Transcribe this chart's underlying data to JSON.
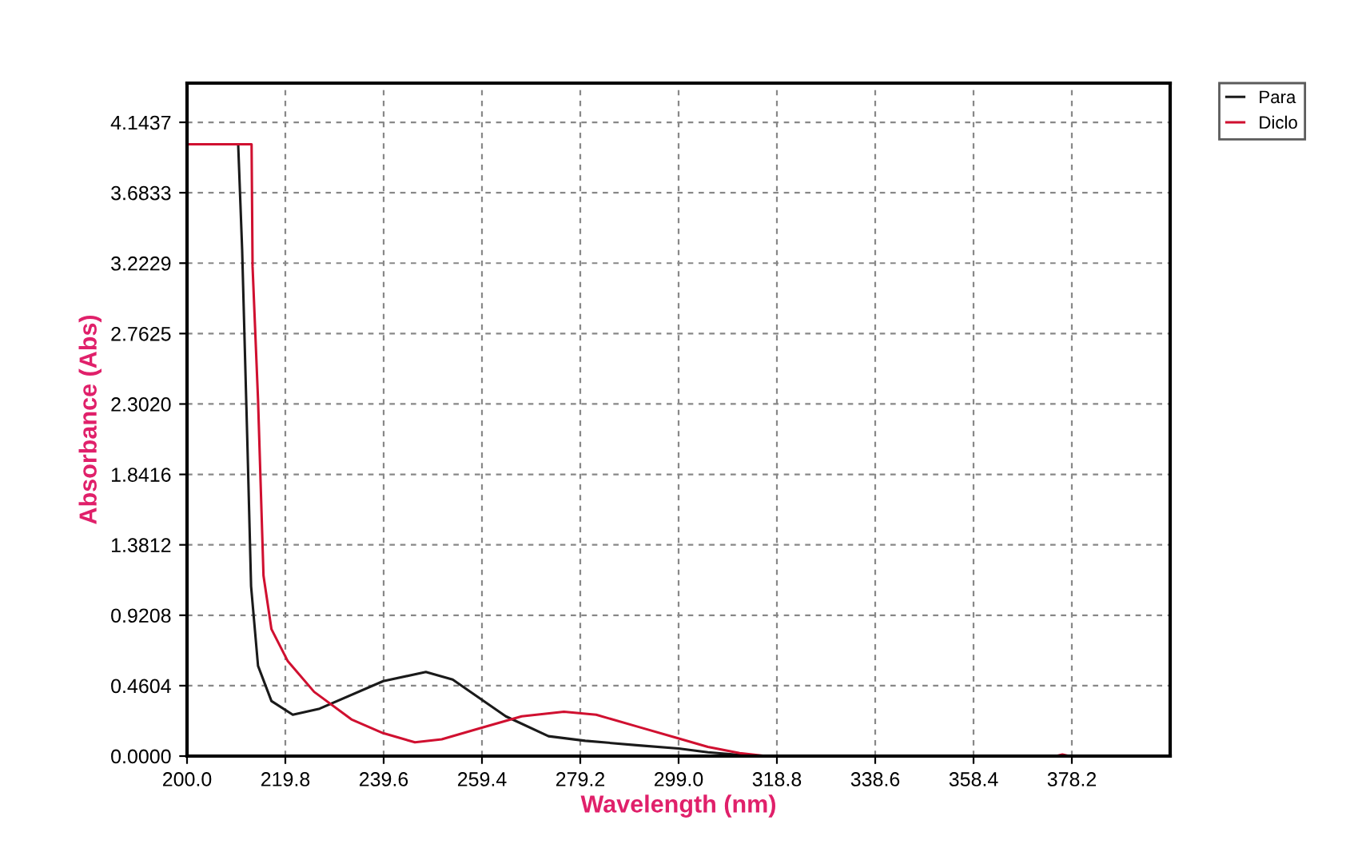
{
  "chart_data": {
    "type": "line",
    "xlabel": "Wavelength (nm)",
    "ylabel": "Absorbance (Abs)",
    "series": [
      {
        "name": "Para",
        "color": "#1a1a1a",
        "x": [
          200,
          210.3,
          211.1,
          212.2,
          212.9,
          214.3,
          217.0,
          221.3,
          226.7,
          239.5,
          248.1,
          253.5,
          264.2,
          272.8,
          280.2,
          291,
          299,
          304.9,
          310.3,
          315,
          398
        ],
        "values": [
          4.0,
          4.0,
          3.31,
          1.99,
          1.11,
          0.59,
          0.36,
          0.27,
          0.31,
          0.49,
          0.55,
          0.5,
          0.26,
          0.13,
          0.1,
          0.07,
          0.05,
          0.025,
          0.01,
          0,
          0
        ]
      },
      {
        "name": "Diclo",
        "color": "#d01030",
        "x": [
          200,
          213.0,
          213.2,
          214.3,
          215.4,
          217.0,
          220.3,
          225.6,
          233.1,
          239.5,
          245.9,
          251.3,
          258.8,
          267.4,
          275.9,
          282.4,
          291,
          298.5,
          304.9,
          311.3,
          316.7,
          375,
          376.3,
          377.7,
          398
        ],
        "values": [
          4.0,
          4.0,
          3.2,
          2.33,
          1.18,
          0.83,
          0.62,
          0.42,
          0.24,
          0.15,
          0.09,
          0.11,
          0.18,
          0.26,
          0.29,
          0.27,
          0.19,
          0.12,
          0.06,
          0.02,
          0,
          0,
          0.01,
          0,
          0
        ]
      }
    ],
    "xlim": [
      200,
      398
    ],
    "ylim": [
      0,
      4.4
    ],
    "xticks": [
      {
        "value": 200,
        "label": "200.0"
      },
      {
        "value": 219.8,
        "label": "219.8"
      },
      {
        "value": 239.6,
        "label": "239.6"
      },
      {
        "value": 259.4,
        "label": "259.4"
      },
      {
        "value": 279.2,
        "label": "279.2"
      },
      {
        "value": 299,
        "label": "299.0"
      },
      {
        "value": 318.8,
        "label": "318.8"
      },
      {
        "value": 338.6,
        "label": "338.6"
      },
      {
        "value": 358.4,
        "label": "358.4"
      },
      {
        "value": 378.2,
        "label": "378.2"
      }
    ],
    "yticks": [
      {
        "value": 0,
        "label": "0.0000"
      },
      {
        "value": 0.4604,
        "label": "0.4604"
      },
      {
        "value": 0.9208,
        "label": "0.9208"
      },
      {
        "value": 1.3812,
        "label": "1.3812"
      },
      {
        "value": 1.8416,
        "label": "1.8416"
      },
      {
        "value": 2.302,
        "label": "2.3020"
      },
      {
        "value": 2.7625,
        "label": "2.7625"
      },
      {
        "value": 3.2229,
        "label": "3.2229"
      },
      {
        "value": 3.6833,
        "label": "3.6833"
      },
      {
        "value": 4.1437,
        "label": "4.1437"
      }
    ],
    "grid": true,
    "legend": "top right",
    "marker": "none",
    "line_style": "solid"
  }
}
